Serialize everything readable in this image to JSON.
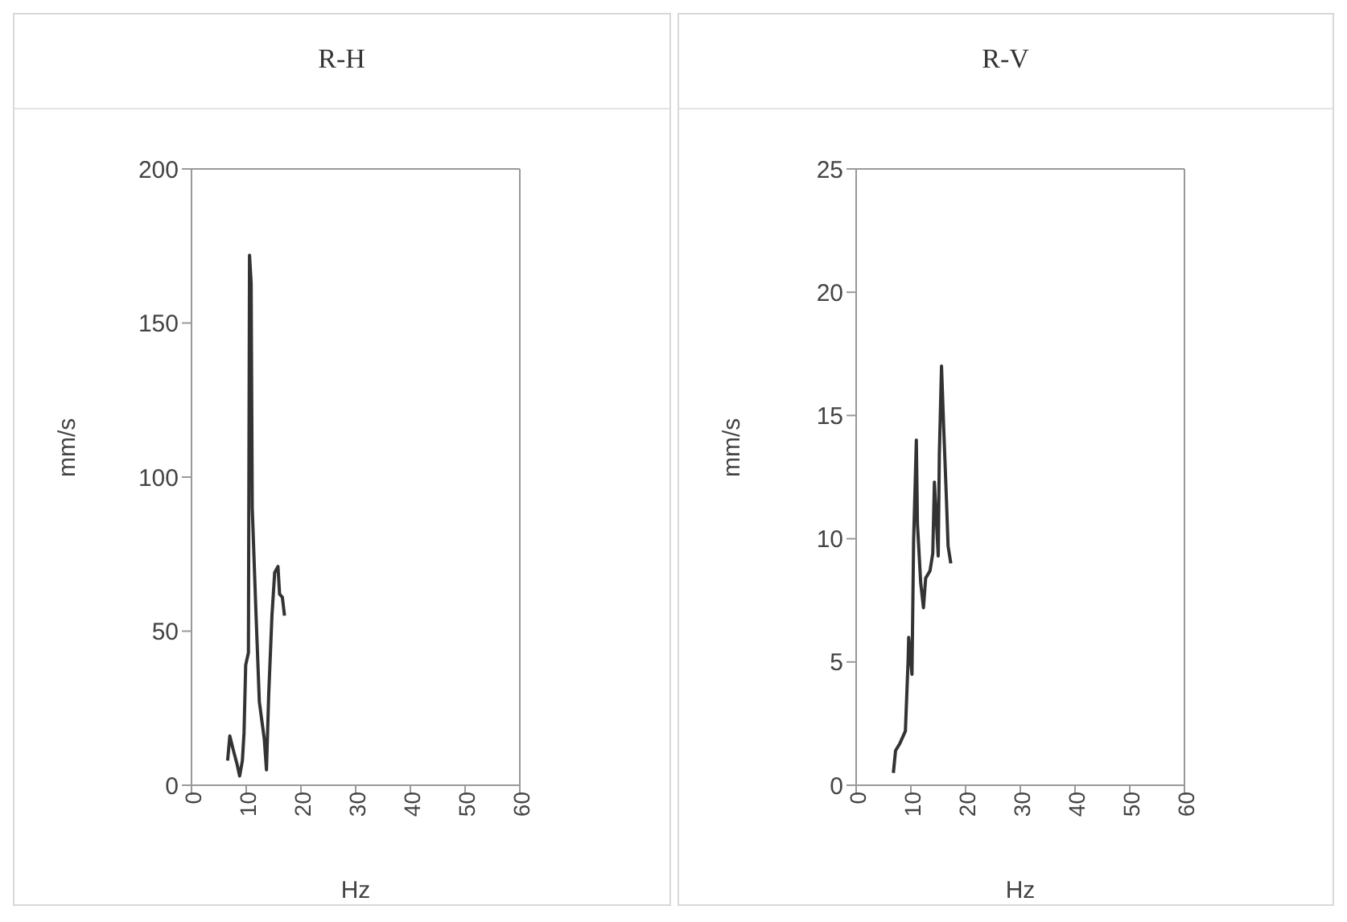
{
  "chart_data": [
    {
      "type": "line",
      "title": "R-H",
      "xlabel": "Hz",
      "ylabel": "mm/s",
      "xlim": [
        0,
        60
      ],
      "xticks": [
        0,
        10,
        20,
        30,
        40,
        50,
        60
      ],
      "ylim": [
        0,
        200
      ],
      "yticks": [
        0,
        50,
        100,
        150,
        200
      ],
      "marker": "none",
      "series": [
        {
          "color": "#333333",
          "x": [
            6.6,
            7.0,
            7.7,
            8.3,
            8.8,
            9.3,
            9.6,
            9.9,
            10.4,
            10.6,
            10.9,
            11.1,
            11.8,
            12.4,
            13.3,
            13.7,
            14.1,
            14.7,
            15.2,
            15.8,
            16.1,
            16.6,
            17.0
          ],
          "values": [
            8,
            16,
            11,
            7,
            3,
            8,
            17,
            39,
            43,
            172,
            163,
            90,
            55,
            27,
            15,
            5,
            29,
            55,
            69,
            71,
            62,
            61,
            55
          ]
        }
      ]
    },
    {
      "type": "line",
      "title": "R-V",
      "xlabel": "Hz",
      "ylabel": "mm/s",
      "xlim": [
        0,
        60
      ],
      "xticks": [
        0,
        10,
        20,
        30,
        40,
        50,
        60
      ],
      "ylim": [
        0,
        25
      ],
      "yticks": [
        0,
        5,
        10,
        15,
        20,
        25
      ],
      "marker": "none",
      "series": [
        {
          "color": "#333333",
          "x": [
            6.8,
            7.2,
            8.0,
            9.0,
            9.5,
            9.6,
            10.2,
            10.5,
            11.0,
            11.2,
            11.8,
            12.3,
            12.7,
            13.5,
            14.0,
            14.3,
            15.0,
            15.2,
            15.6,
            16.0,
            16.5,
            16.8,
            17.3
          ],
          "values": [
            0.5,
            1.4,
            1.7,
            2.2,
            5.1,
            6,
            4.5,
            9.9,
            14,
            10.6,
            8.2,
            7.2,
            8.4,
            8.7,
            9.4,
            12.3,
            9.3,
            13.4,
            17,
            14.5,
            11.6,
            9.7,
            9
          ]
        }
      ]
    }
  ]
}
